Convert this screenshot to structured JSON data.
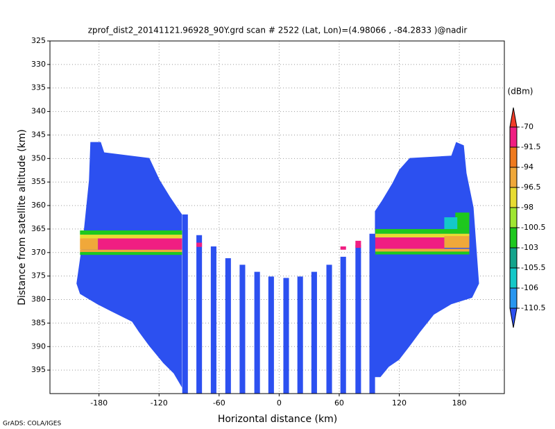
{
  "chart_data": {
    "type": "heatmap",
    "title": "zprof_dist2_20141121.96928_90Y.grd  scan # 2522  (Lat, Lon)=(4.98066 , -84.2833 )@nadir",
    "xlabel": "Horizontal distance (km)",
    "ylabel": "Distance from satellite altitude (km)",
    "colorbar_label": "(dBm)",
    "credit": "GrADS: COLA/IGES",
    "xlim": [
      -229,
      225
    ],
    "ylim": [
      400,
      325
    ],
    "xticks": [
      -180,
      -120,
      -60,
      0,
      60,
      120,
      180
    ],
    "yticks": [
      325,
      330,
      335,
      340,
      345,
      350,
      355,
      360,
      365,
      370,
      375,
      380,
      385,
      390,
      395
    ],
    "grid": true,
    "levels": [
      -70,
      -91.5,
      -94,
      -96.5,
      -98,
      -100.5,
      -103,
      -105.5,
      -106,
      -110.5
    ],
    "colors": [
      "#f03c28",
      "#f01e82",
      "#ef7a1e",
      "#f0a83a",
      "#e8dc32",
      "#a0e632",
      "#1ec81e",
      "#14a48c",
      "#14c8c8",
      "#2896f0",
      "#2c50f0"
    ],
    "regions": [
      {
        "value": -112,
        "points": [
          [
            -188.6,
            346.5
          ],
          [
            -178.2,
            346.5
          ],
          [
            -174.8,
            348.7
          ],
          [
            -129.7,
            349.9
          ],
          [
            -119.3,
            354.6
          ],
          [
            -108.9,
            358.2
          ],
          [
            -97.1,
            361.9
          ],
          [
            -97.1,
            398.7
          ],
          [
            -105.4,
            395.7
          ],
          [
            -115.8,
            393.5
          ],
          [
            -129.7,
            389.9
          ],
          [
            -140.1,
            386.9
          ],
          [
            -147,
            384.7
          ],
          [
            -167.8,
            382.5
          ],
          [
            -181.7,
            381
          ],
          [
            -199,
            378.8
          ],
          [
            -202.5,
            376.6
          ],
          [
            -195.6,
            366.3
          ],
          [
            -190,
            354.6
          ]
        ]
      },
      {
        "value": -112,
        "points": [
          [
            95.7,
            361.2
          ],
          [
            102.6,
            359
          ],
          [
            113,
            355.3
          ],
          [
            119.9,
            352.4
          ],
          [
            130.4,
            349.9
          ],
          [
            172,
            349.4
          ],
          [
            176.8,
            346.5
          ],
          [
            184.5,
            347.2
          ],
          [
            187.2,
            353.1
          ],
          [
            194.2,
            360.4
          ],
          [
            199.7,
            376.6
          ],
          [
            192.8,
            379.6
          ],
          [
            172,
            381
          ],
          [
            154.6,
            383.2
          ],
          [
            140.8,
            386.9
          ],
          [
            130.4,
            389.9
          ],
          [
            119.9,
            392.8
          ],
          [
            109.6,
            394.3
          ],
          [
            101.2,
            396.5
          ],
          [
            95.7,
            396.5
          ]
        ]
      }
    ],
    "cells": [
      [
        -96.8,
        -91.2,
        361.9,
        400,
        -112
      ],
      [
        -82.7,
        -77.1,
        366.3,
        400,
        -112
      ],
      [
        -68.3,
        -62.7,
        368.7,
        400,
        -112
      ],
      [
        -53.8,
        -48.2,
        371.2,
        400,
        -112
      ],
      [
        -39.5,
        -33.9,
        372.6,
        400,
        -112
      ],
      [
        -24.8,
        -19.2,
        374.1,
        400,
        -112
      ],
      [
        -10.8,
        -5.2,
        375.1,
        400,
        -112
      ],
      [
        4.2,
        9.8,
        375.4,
        400,
        -112
      ],
      [
        18.2,
        23.8,
        375.1,
        400,
        -112
      ],
      [
        32.2,
        37.8,
        374.1,
        400,
        -112
      ],
      [
        47.2,
        52.8,
        372.6,
        400,
        -112
      ],
      [
        61.2,
        66.8,
        370.9,
        400,
        -112
      ],
      [
        76.2,
        81.8,
        368.4,
        400,
        -112
      ],
      [
        90.2,
        95.8,
        366,
        400,
        -112
      ],
      [
        -199,
        -97,
        365.3,
        366.2,
        -103
      ],
      [
        -199,
        -97,
        366.2,
        367,
        -98
      ],
      [
        -199,
        -181,
        367,
        369.4,
        -95
      ],
      [
        -181,
        -97,
        367,
        369.4,
        -85
      ],
      [
        -199,
        -97,
        369.4,
        369.9,
        -95
      ],
      [
        -199,
        -97,
        369.9,
        370.5,
        -103
      ],
      [
        96,
        190,
        365,
        366,
        -103
      ],
      [
        96,
        190,
        366,
        366.8,
        -98
      ],
      [
        96,
        165,
        366.8,
        369.2,
        -85
      ],
      [
        165,
        190,
        366.5,
        369,
        -95
      ],
      [
        96,
        190,
        369.2,
        369.8,
        -95
      ],
      [
        96,
        190,
        369.8,
        370.4,
        -103
      ],
      [
        176,
        190,
        361.5,
        365,
        -102
      ],
      [
        165,
        178,
        362.5,
        365,
        -106
      ],
      [
        -82.7,
        -77.1,
        367.9,
        368.8,
        -85
      ],
      [
        61.2,
        66.8,
        368.7,
        369.4,
        -85
      ],
      [
        76.2,
        81.8,
        367.5,
        369,
        -85
      ]
    ]
  }
}
